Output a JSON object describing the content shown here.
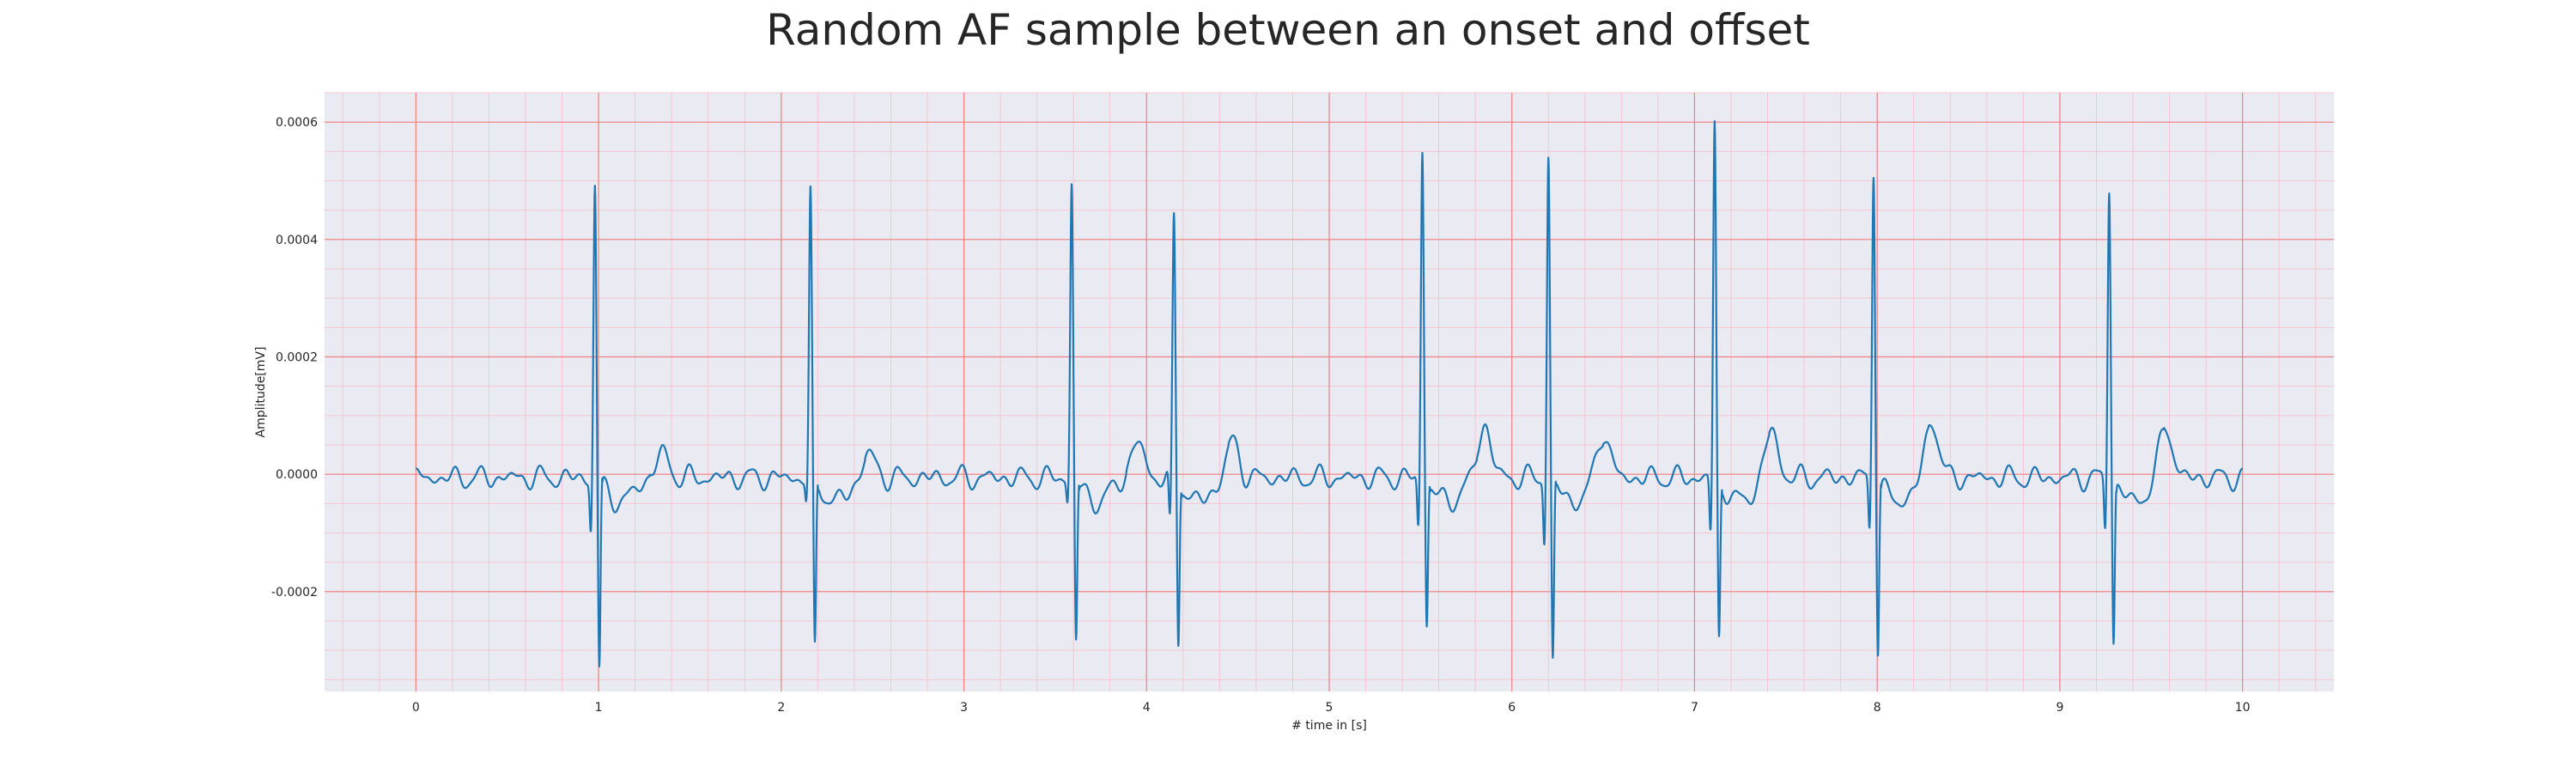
{
  "chart_data": {
    "type": "line",
    "title": "Random AF sample between an onset and offset",
    "xlabel": "# time in [s]",
    "ylabel": "Amplitude[mV]",
    "xlim": [
      -0.5,
      10.5
    ],
    "ylim": [
      -0.00037,
      0.00065
    ],
    "x_ticks": [
      0,
      1,
      2,
      3,
      4,
      5,
      6,
      7,
      8,
      9,
      10
    ],
    "x_tick_labels": [
      "0",
      "1",
      "2",
      "3",
      "4",
      "5",
      "6",
      "7",
      "8",
      "9",
      "10"
    ],
    "y_ticks": [
      -0.0002,
      0,
      0.0002,
      0.0004,
      0.0006
    ],
    "y_tick_labels": [
      "-0.0002",
      "0.0000",
      "0.0002",
      "0.0004",
      "0.0006"
    ],
    "grid": true,
    "major_grid_color": "#f08080",
    "minor_grid_color": "#f5c6cf",
    "background_color": "#eaeaf2",
    "series": [
      {
        "color": "#1f77b4",
        "x_start": 0,
        "x_end": 10,
        "qrs_complexes": [
          {
            "t": 0.98,
            "r": 0.0005,
            "q": -9e-05,
            "s": -0.00033
          },
          {
            "t": 2.16,
            "r": 0.00048,
            "q": -4e-05,
            "s": -0.0003
          },
          {
            "t": 3.59,
            "r": 0.0005,
            "q": -4e-05,
            "s": -0.00028
          },
          {
            "t": 4.15,
            "r": 0.00044,
            "q": -9e-05,
            "s": -0.00028
          },
          {
            "t": 5.51,
            "r": 0.00056,
            "q": -9e-05,
            "s": -0.00025
          },
          {
            "t": 6.2,
            "r": 0.00055,
            "q": -0.00011,
            "s": -0.00032
          },
          {
            "t": 7.11,
            "r": 0.0006,
            "q": -0.0001,
            "s": -0.00028
          },
          {
            "t": 7.98,
            "r": 0.00053,
            "q": -9e-05,
            "s": -0.00029
          },
          {
            "t": 9.27,
            "r": 0.0005,
            "q": -9e-05,
            "s": -0.00028
          }
        ],
        "post_qrs_waves": [
          {
            "t": 1.35,
            "v": 4e-05
          },
          {
            "t": 2.48,
            "v": 4e-05
          },
          {
            "t": 3.95,
            "v": 6e-05
          },
          {
            "t": 4.47,
            "v": 6e-05
          },
          {
            "t": 5.85,
            "v": 9e-05
          },
          {
            "t": 6.5,
            "v": 8e-05
          },
          {
            "t": 7.42,
            "v": 8e-05
          },
          {
            "t": 8.3,
            "v": 0.0001
          },
          {
            "t": 9.58,
            "v": 9e-05
          }
        ]
      }
    ]
  }
}
